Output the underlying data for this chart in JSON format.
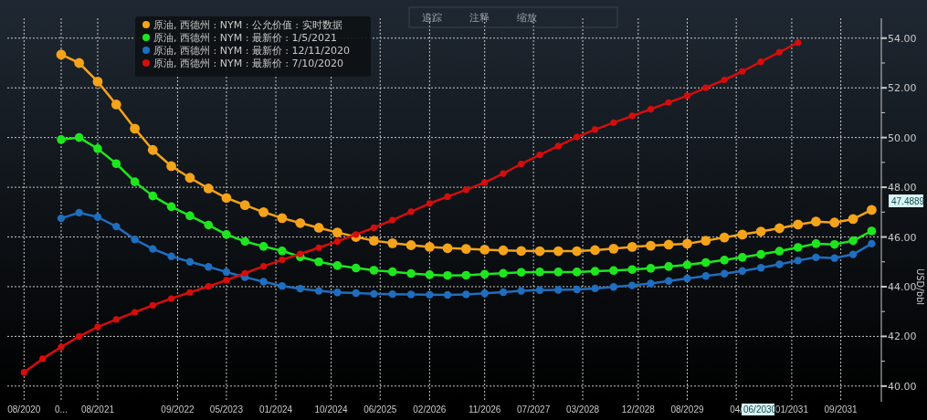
{
  "chart_data": {
    "type": "line",
    "x": [
      "2020-08",
      "2020-11",
      "2021-02",
      "2021-05",
      "2021-08",
      "2021-11",
      "2022-02",
      "2022-05",
      "2022-08",
      "2022-11",
      "2023-02",
      "2023-05",
      "2023-08",
      "2023-11",
      "2024-02",
      "2024-05",
      "2024-08",
      "2024-11",
      "2025-02",
      "2025-05",
      "2025-08",
      "2025-11",
      "2026-02",
      "2026-05",
      "2026-08",
      "2026-11",
      "2027-02",
      "2027-05",
      "2027-08",
      "2027-11",
      "2028-02",
      "2028-05",
      "2028-08",
      "2028-11",
      "2029-02",
      "2029-05",
      "2029-08",
      "2029-11",
      "2030-02",
      "2030-05",
      "2030-08",
      "2030-11",
      "2031-02",
      "2031-05",
      "2031-08",
      "2031-11",
      "2032-02"
    ],
    "series": [
      {
        "name": "原油, 西德州 : NYM : 公允价值 : 实时数据",
        "color": "#f5a31a",
        "values": [
          null,
          null,
          53.34,
          53.0,
          52.25,
          51.33,
          50.36,
          49.5,
          48.85,
          48.38,
          47.95,
          47.57,
          47.28,
          47.0,
          46.76,
          46.56,
          46.37,
          46.18,
          46.0,
          45.85,
          45.75,
          45.67,
          45.6,
          45.55,
          45.52,
          45.49,
          45.46,
          45.44,
          45.43,
          45.43,
          45.43,
          45.47,
          45.53,
          45.6,
          45.65,
          45.69,
          45.73,
          45.85,
          45.98,
          46.1,
          46.22,
          46.35,
          46.5,
          46.62,
          46.58,
          46.72,
          47.09
        ]
      },
      {
        "name": "原油, 西德州 : NYM : 最新价 : 1/5/2021",
        "color": "#1ee61e",
        "values": [
          null,
          null,
          49.92,
          50.0,
          49.55,
          48.95,
          48.22,
          47.65,
          47.22,
          46.85,
          46.48,
          46.1,
          45.82,
          45.62,
          45.44,
          45.2,
          45.0,
          44.85,
          44.75,
          44.66,
          44.6,
          44.53,
          44.48,
          44.45,
          44.46,
          44.5,
          44.54,
          44.58,
          44.59,
          44.59,
          44.59,
          44.62,
          44.65,
          44.69,
          44.74,
          44.81,
          44.88,
          44.97,
          45.07,
          45.18,
          45.3,
          45.43,
          45.58,
          45.73,
          45.7,
          45.85,
          46.24
        ]
      },
      {
        "name": "原油, 西德州 : NYM : 最新价 : 12/11/2020",
        "color": "#1f6ebf",
        "values": [
          null,
          null,
          46.75,
          46.98,
          46.8,
          46.42,
          45.9,
          45.52,
          45.22,
          45.0,
          44.8,
          44.59,
          44.38,
          44.2,
          44.03,
          43.92,
          43.83,
          43.77,
          43.74,
          43.71,
          43.7,
          43.69,
          43.68,
          43.67,
          43.69,
          43.73,
          43.78,
          43.83,
          43.86,
          43.87,
          43.89,
          43.93,
          43.99,
          44.05,
          44.13,
          44.23,
          44.33,
          44.43,
          44.52,
          44.63,
          44.76,
          44.9,
          45.05,
          45.18,
          45.15,
          45.3,
          45.73
        ]
      },
      {
        "name": "原油, 西德州 : NYM : 最新价 : 7/10/2020",
        "color": "#d40d0d",
        "values": [
          40.55,
          41.1,
          41.57,
          42.0,
          42.38,
          42.68,
          42.97,
          43.25,
          43.52,
          43.77,
          44.01,
          44.26,
          44.54,
          44.82,
          45.08,
          45.32,
          45.57,
          45.82,
          46.1,
          46.37,
          46.68,
          47.02,
          47.35,
          47.62,
          47.9,
          48.19,
          48.55,
          48.94,
          49.3,
          49.66,
          50.02,
          50.32,
          50.6,
          50.87,
          51.14,
          51.41,
          51.68,
          52.0,
          52.32,
          52.66,
          53.05,
          53.44,
          53.82,
          null,
          null,
          null,
          null
        ]
      }
    ],
    "xlim": [
      "2020-05-10",
      "2032-03-20"
    ],
    "ylim": [
      39.37,
      54.8
    ],
    "xticks": [
      {
        "value": "2020-08",
        "label": "08/2020"
      },
      {
        "value": "2021-02",
        "label": "0..."
      },
      {
        "value": "2021-08",
        "label": "08/2021"
      },
      {
        "value": "2022-09",
        "label": "09/2022"
      },
      {
        "value": "2023-05",
        "label": "05/2023"
      },
      {
        "value": "2024-01",
        "label": "01/2024"
      },
      {
        "value": "2024-10",
        "label": "10/2024"
      },
      {
        "value": "2025-06",
        "label": "06/2025"
      },
      {
        "value": "2026-02",
        "label": "02/2026"
      },
      {
        "value": "2026-11",
        "label": "11/2026"
      },
      {
        "value": "2027-07",
        "label": "07/2027"
      },
      {
        "value": "2028-03",
        "label": "03/2028"
      },
      {
        "value": "2028-12",
        "label": "12/2028"
      },
      {
        "value": "2029-08",
        "label": "08/2029"
      },
      {
        "value": "2030-04",
        "label": "04/"
      },
      {
        "value": "2031-01",
        "label": "01/2031"
      },
      {
        "value": "2031-09",
        "label": "09/2031"
      }
    ],
    "yticks": [
      {
        "value": 40,
        "label": "40.00"
      },
      {
        "value": 41,
        "label": null
      },
      {
        "value": 42,
        "label": "42.00"
      },
      {
        "value": 43,
        "label": null
      },
      {
        "value": 44,
        "label": "44.00"
      },
      {
        "value": 45,
        "label": null
      },
      {
        "value": 46,
        "label": "46.00"
      },
      {
        "value": 47,
        "label": null
      },
      {
        "value": 48,
        "label": "48.00"
      },
      {
        "value": 49,
        "label": null
      },
      {
        "value": 50,
        "label": "50.00"
      },
      {
        "value": 51,
        "label": null
      },
      {
        "value": 52,
        "label": "52.00"
      },
      {
        "value": 53,
        "label": null
      },
      {
        "value": 54,
        "label": "54.00"
      }
    ],
    "ylabel": "USD/bbl",
    "annotations": [
      "追踪",
      "注释",
      "缩放",
      "47.4889",
      "06/2030"
    ],
    "legend": "top left",
    "grid": true,
    "marker": "circle",
    "line_style": "solid"
  }
}
